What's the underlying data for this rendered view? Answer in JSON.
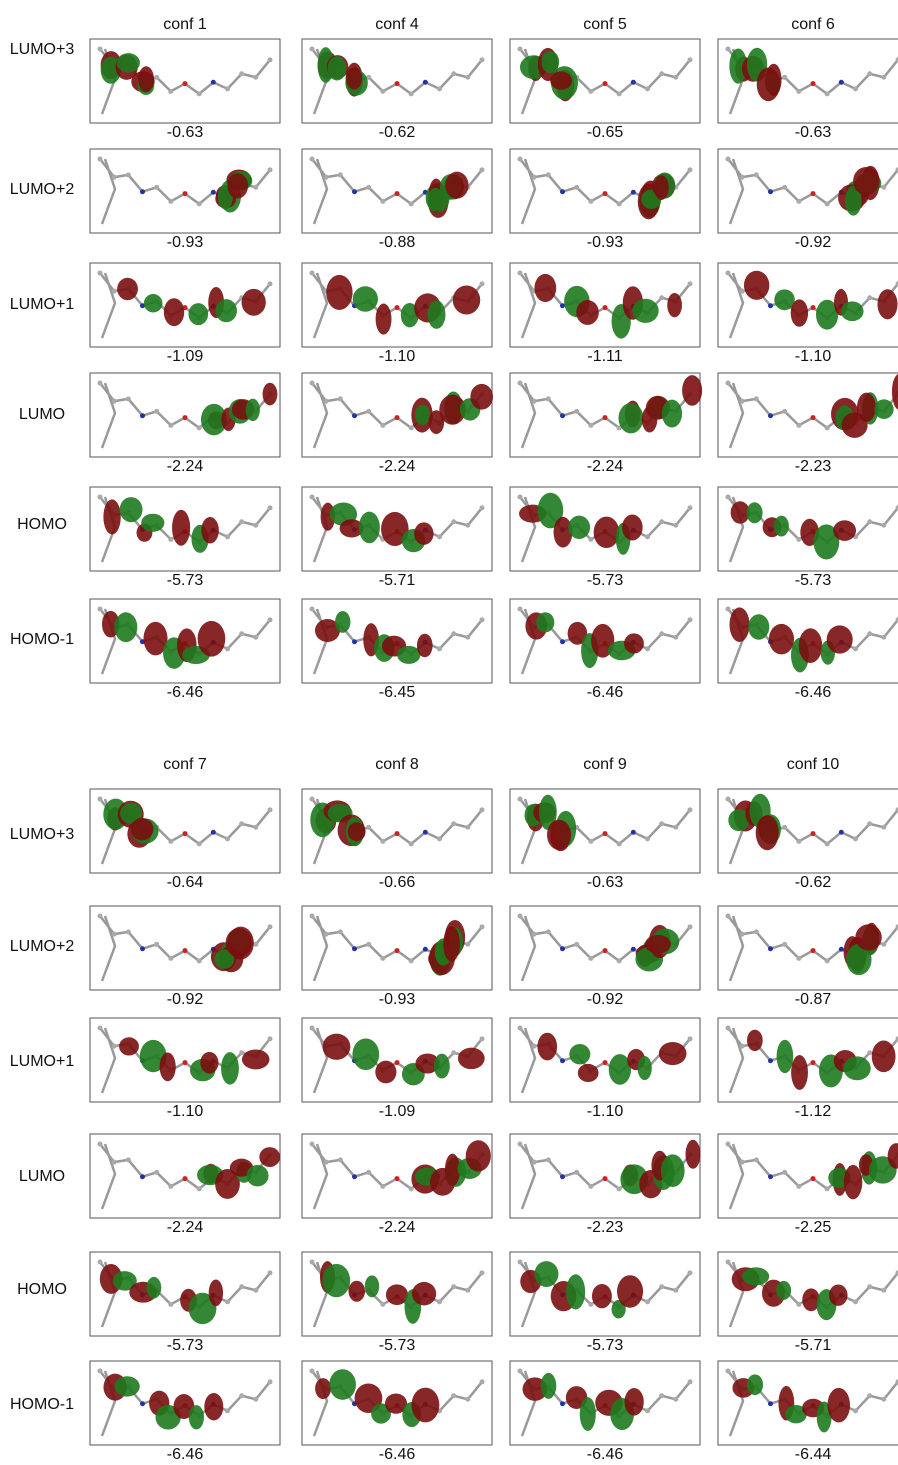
{
  "panels": [
    {
      "columns": [
        "conf 1",
        "conf 4",
        "conf 5",
        "conf 6"
      ],
      "rows": [
        "LUMO+3",
        "LUMO+2",
        "LUMO+1",
        "LUMO",
        "HOMO",
        "HOMO-1"
      ],
      "energies": [
        [
          "-0.63",
          "-0.62",
          "-0.65",
          "-0.63"
        ],
        [
          "-0.93",
          "-0.88",
          "-0.93",
          "-0.92"
        ],
        [
          "-1.09",
          "-1.10",
          "-1.11",
          "-1.10"
        ],
        [
          "-2.24",
          "-2.24",
          "-2.24",
          "-2.23"
        ],
        [
          "-5.73",
          "-5.71",
          "-5.73",
          "-5.73"
        ],
        [
          "-6.46",
          "-6.45",
          "-6.46",
          "-6.46"
        ]
      ]
    },
    {
      "columns": [
        "conf 7",
        "conf 8",
        "conf 9",
        "conf 10"
      ],
      "rows": [
        "LUMO+3",
        "LUMO+2",
        "LUMO+1",
        "LUMO",
        "HOMO",
        "HOMO-1"
      ],
      "energies": [
        [
          "-0.64",
          "-0.66",
          "-0.63",
          "-0.62"
        ],
        [
          "-0.92",
          "-0.93",
          "-0.92",
          "-0.87"
        ],
        [
          "-1.10",
          "-1.09",
          "-1.10",
          "-1.12"
        ],
        [
          "-2.24",
          "-2.24",
          "-2.23",
          "-2.25"
        ],
        [
          "-5.73",
          "-5.73",
          "-5.73",
          "-5.71"
        ],
        [
          "-6.46",
          "-6.46",
          "-6.46",
          "-6.44"
        ]
      ]
    }
  ]
}
